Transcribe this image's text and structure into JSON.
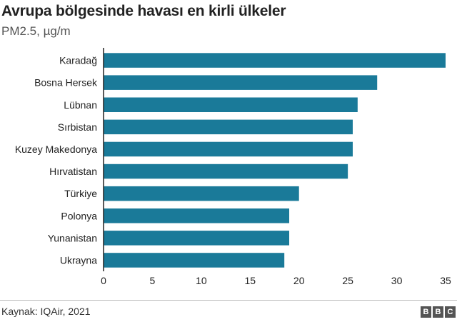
{
  "header": {
    "title": "Avrupa bölgesinde havası en kirli ülkeler",
    "subtitle": "PM2.5, µg/m"
  },
  "footer": {
    "source": "Kaynak: IQAir, 2021",
    "logo_letters": [
      "B",
      "B",
      "C"
    ]
  },
  "colors": {
    "bar": "#1a7a99",
    "axis": "#222222",
    "grid": "#dddddd"
  },
  "chart_data": {
    "type": "bar",
    "orientation": "horizontal",
    "title": "Avrupa bölgesinde havası en kirli ülkeler",
    "subtitle": "PM2.5, µg/m",
    "categories": [
      "Karadağ",
      "Bosna Hersek",
      "Lübnan",
      "Sırbistan",
      "Kuzey Makedonya",
      "Hırvatistan",
      "Türkiye",
      "Polonya",
      "Yunanistan",
      "Ukrayna"
    ],
    "values": [
      35.0,
      28.0,
      26.0,
      25.5,
      25.5,
      25.0,
      20.0,
      19.0,
      19.0,
      18.5
    ],
    "xlim": [
      0,
      35
    ],
    "xticks": [
      0,
      5,
      10,
      15,
      20,
      25,
      30,
      35
    ],
    "grid": false
  }
}
